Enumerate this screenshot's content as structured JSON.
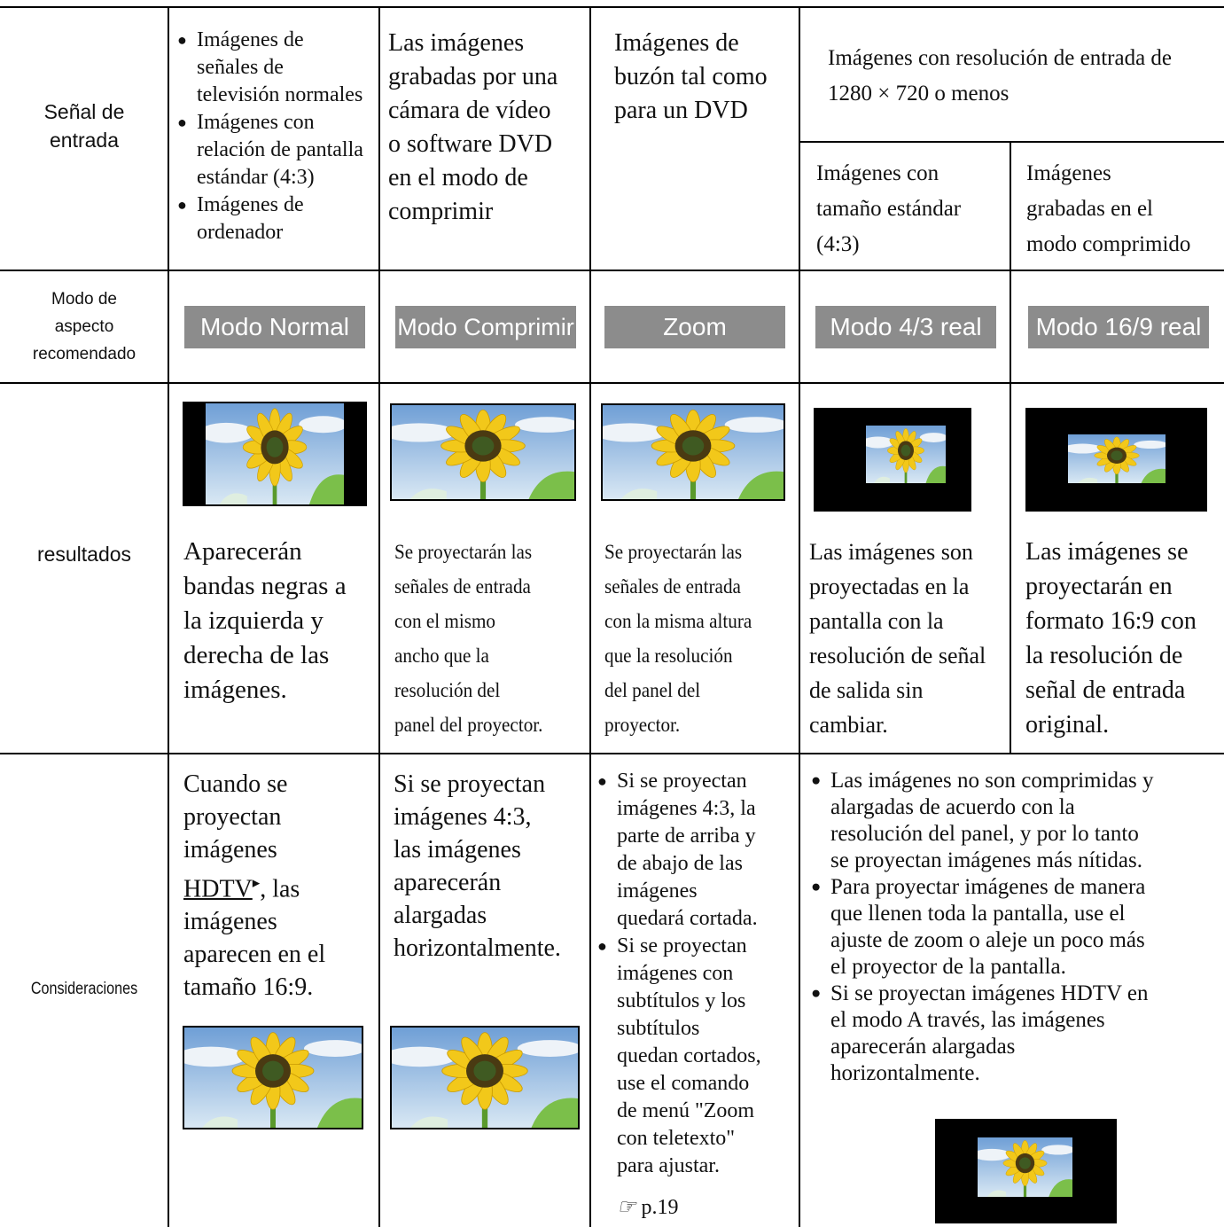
{
  "input_signal": {
    "label": [
      "Señal de",
      "entrada"
    ],
    "col1": [
      [
        "Imágenes de",
        "señales de",
        "televisión normales"
      ],
      [
        "Imágenes con",
        "relación de pantalla",
        "estándar (4:3)"
      ],
      [
        "Imágenes de",
        "ordenador"
      ]
    ],
    "col2": [
      "Las imágenes",
      "grabadas por una",
      "cámara de vídeo",
      "o software DVD",
      "en el modo de",
      "comprimir"
    ],
    "col3": [
      "Imágenes de",
      "buzón tal como",
      "para un DVD"
    ],
    "col45_header": [
      "Imágenes con resolución de entrada de",
      "1280 × 720 o menos"
    ],
    "col4": [
      "Imágenes con",
      "tamaño estándar",
      "(4:3)"
    ],
    "col5": [
      "Imágenes",
      "grabadas en el",
      "modo comprimido"
    ]
  },
  "aspect_mode": {
    "label": [
      "Modo de",
      "aspecto",
      "recomendado"
    ],
    "modes": [
      "Modo Normal",
      "Modo Comprimir",
      "Zoom",
      "Modo 4/3 real",
      "Modo 16/9 real"
    ]
  },
  "results": {
    "label": "resultados",
    "col1": [
      "Aparecerán",
      "bandas negras a",
      "la izquierda y",
      "derecha de las",
      "imágenes."
    ],
    "col2": [
      "Se proyectarán las",
      "señales de entrada",
      "con el mismo",
      "ancho que la",
      "resolución del",
      "panel del proyector."
    ],
    "col3": [
      "Se proyectarán las",
      "señales de entrada",
      "con la misma altura",
      "que la resolución",
      "del panel del",
      "proyector."
    ],
    "col4": [
      "Las imágenes son",
      "proyectadas en la",
      "pantalla con la",
      "resolución de señal",
      "de salida sin",
      "cambiar."
    ],
    "col5": [
      "Las imágenes se",
      "proyectarán en",
      "formato 16:9 con",
      "la resolución de",
      "señal de entrada",
      "original."
    ]
  },
  "considerations": {
    "label": "Consideraciones",
    "col1": [
      "Cuando se",
      "proyectan",
      "imágenes",
      {
        "link": "HDTV",
        "text": ", las"
      },
      "imágenes",
      "aparecen en el",
      "tamaño 16:9."
    ],
    "col2": [
      "Si se proyectan",
      "imágenes 4:3,",
      "las imágenes",
      "aparecerán",
      "alargadas",
      "horizontalmente."
    ],
    "col3": [
      [
        "Si se proyectan",
        "imágenes 4:3, la",
        "parte de arriba y",
        "de abajo de las",
        "imágenes",
        "quedará cortada."
      ],
      [
        "Si se proyectan",
        "imágenes con",
        "subtítulos y los",
        "subtítulos",
        "quedan cortados,",
        "use el comando",
        "de menú \"Zoom",
        "con teletexto\"",
        "para ajustar."
      ]
    ],
    "page_ref": "p.19",
    "col45": [
      [
        "Las imágenes no son comprimidas y",
        "alargadas de acuerdo con la",
        "resolución del panel, y por lo tanto",
        "se proyectan imágenes más nítidas."
      ],
      [
        "Para proyectar imágenes de manera",
        "que llenen toda la pantalla, use el",
        "ajuste de zoom o aleje un poco más",
        "el proyector de la pantalla."
      ],
      [
        "Si se proyectan imágenes HDTV en",
        "el modo A través, las imágenes",
        "aparecerán alargadas",
        "horizontalmente."
      ]
    ]
  }
}
